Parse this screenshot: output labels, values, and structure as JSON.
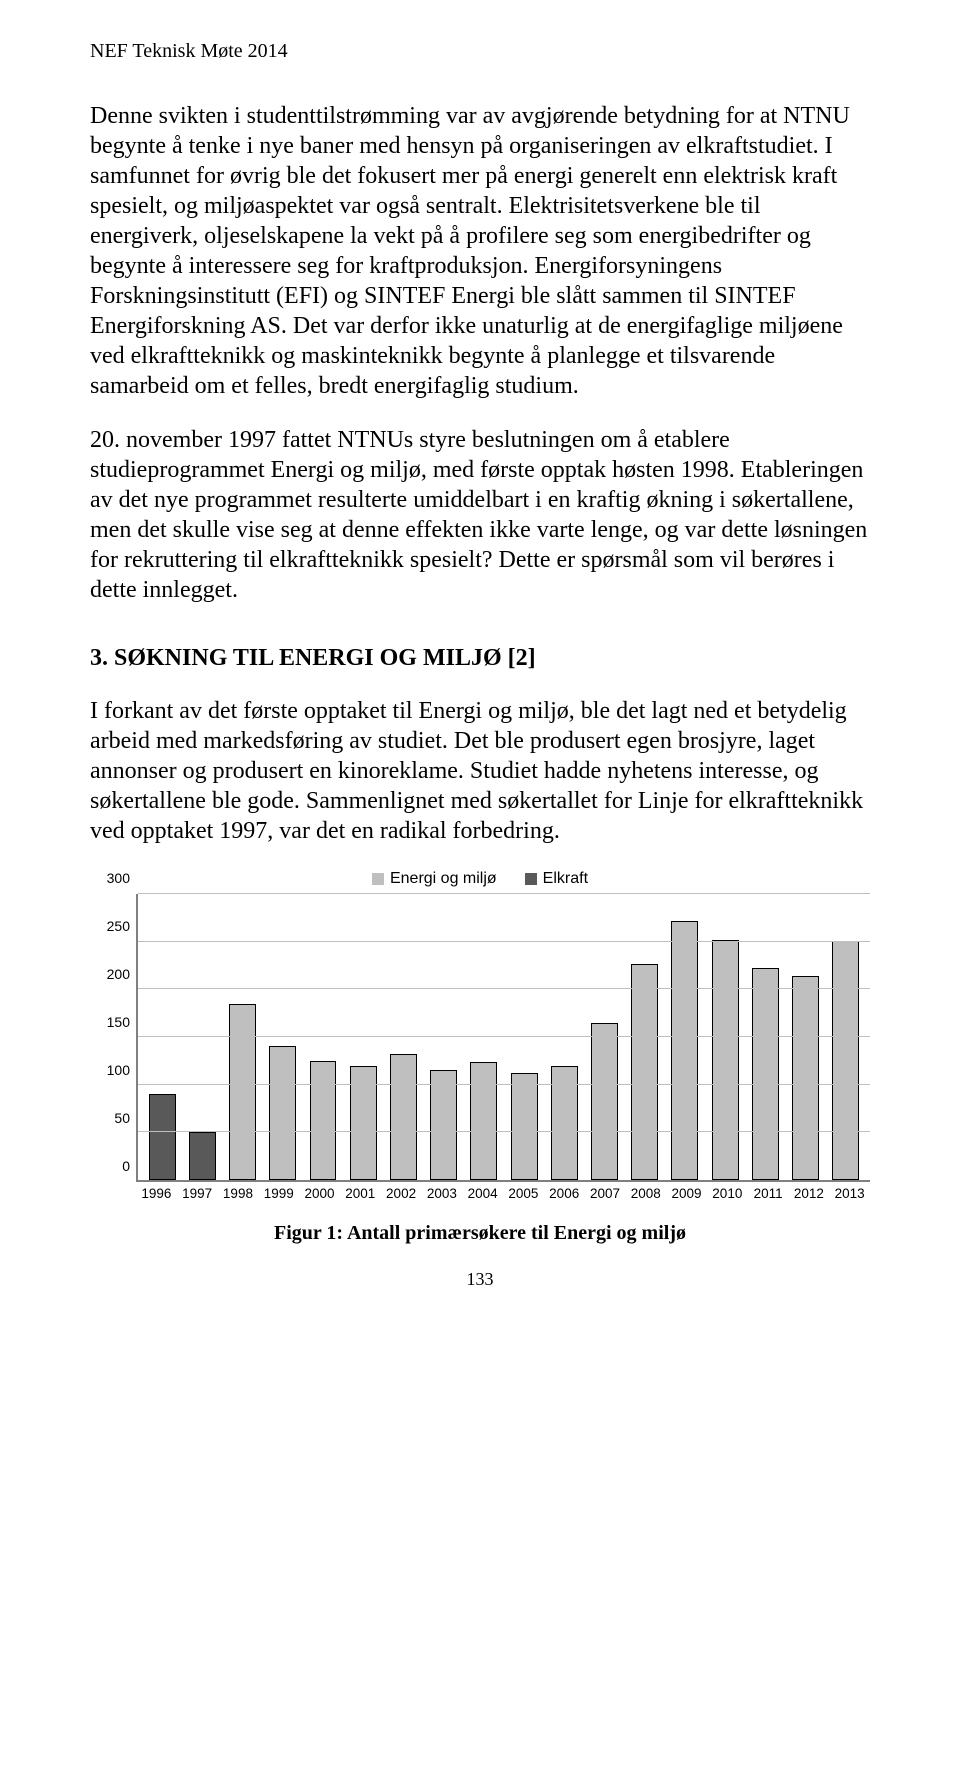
{
  "header": "NEF Teknisk Møte 2014",
  "paragraphs": {
    "p1": "Denne svikten i studenttilstrømming var av avgjørende betydning for at NTNU begynte å tenke i nye baner med hensyn på organiseringen av elkraftstudiet. I samfunnet for øvrig ble det fokusert mer på energi generelt enn elektrisk kraft spesielt, og miljøaspektet var også sentralt. Elektrisitetsverkene ble til energiverk, oljeselskapene la vekt på å profilere seg som energibedrifter og begynte å interessere seg for kraftproduksjon. Energiforsyningens Forskningsinstitutt (EFI) og SINTEF Energi ble slått sammen til SINTEF Energiforskning AS. Det var derfor ikke unaturlig at de energifaglige miljøene ved elkraftteknikk og maskinteknikk begynte å planlegge et tilsvarende samarbeid om et felles, bredt energifaglig studium.",
    "p2": "20. november 1997 fattet NTNUs styre beslutningen om å etablere studieprogrammet Energi og miljø, med første opptak høsten 1998. Etableringen av det nye programmet resulterte umiddelbart i en kraftig økning i søkertallene, men det skulle vise seg at denne effekten ikke varte lenge, og var dette løsningen for rekruttering til elkraftteknikk spesielt? Dette er spørsmål som vil berøres i dette innlegget.",
    "p3": "I forkant av det første opptaket til Energi og miljø, ble det lagt ned et betydelig arbeid med markedsføring av studiet. Det ble produsert egen brosjyre, laget annonser og produsert en kinoreklame. Studiet hadde nyhetens interesse, og søkertallene ble gode. Sammenlignet med søkertallet for Linje for elkraftteknikk ved opptaket 1997, var det en radikal forbedring."
  },
  "section_heading": "3.   SØKNING TIL ENERGI OG MILJØ [2]",
  "chart": {
    "type": "bar",
    "legend": [
      {
        "label": "Energi og miljø",
        "color": "#bfbfbf"
      },
      {
        "label": "Elkraft",
        "color": "#595959"
      }
    ],
    "ylim": [
      0,
      300
    ],
    "ytick_step": 50,
    "yticks": [
      "0",
      "50",
      "100",
      "150",
      "200",
      "250",
      "300"
    ],
    "categories": [
      "1996",
      "1997",
      "1998",
      "1999",
      "2000",
      "2001",
      "2002",
      "2003",
      "2004",
      "2005",
      "2006",
      "2007",
      "2008",
      "2009",
      "2010",
      "2011",
      "2012",
      "2013"
    ],
    "series": [
      {
        "name": "Elkraft",
        "color": "#595959",
        "values": [
          88,
          48,
          null,
          null,
          null,
          null,
          null,
          null,
          null,
          null,
          null,
          null,
          null,
          null,
          null,
          null,
          null,
          null
        ]
      },
      {
        "name": "Energi og miljø",
        "color": "#bfbfbf",
        "values": [
          null,
          null,
          183,
          138,
          123,
          118,
          130,
          113,
          122,
          110,
          118,
          163,
          225,
          270,
          250,
          220,
          212,
          249
        ]
      }
    ],
    "bar_border_color": "#000000",
    "grid_color": "#bfbfbf",
    "axis_color": "#808080",
    "background": "#ffffff",
    "bar_width": 0.62,
    "label_fontsize": 14,
    "legend_fontsize": 16
  },
  "caption": "Figur 1: Antall primærsøkere til Energi og miljø",
  "page_number": "133"
}
